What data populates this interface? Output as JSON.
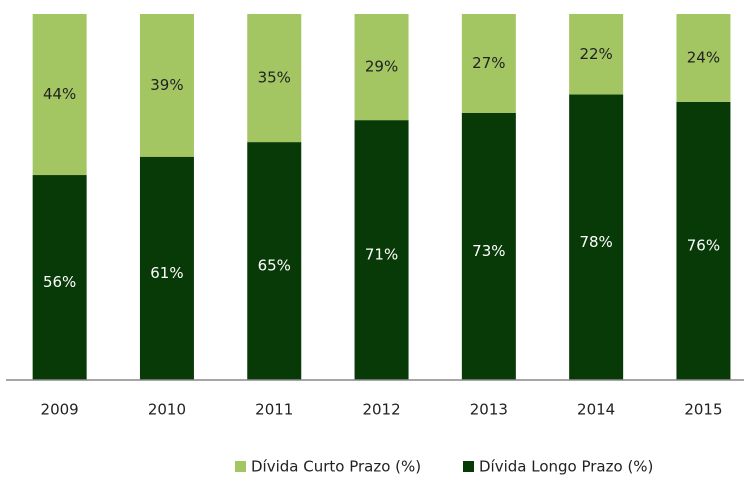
{
  "chart_data": {
    "type": "stacked_bar",
    "categories": [
      "2009",
      "2010",
      "2011",
      "2012",
      "2013",
      "2014",
      "2015"
    ],
    "series": [
      {
        "name": "Dívida Curto Prazo (%)",
        "color": "#a3c663",
        "values": [
          44,
          39,
          35,
          29,
          27,
          22,
          24
        ],
        "value_labels": [
          "44%",
          "39%",
          "35%",
          "29%",
          "27%",
          "22%",
          "24%"
        ]
      },
      {
        "name": "Dívida Longo Prazo (%)",
        "color": "#073a07",
        "values": [
          56,
          61,
          65,
          71,
          73,
          78,
          76
        ],
        "value_labels": [
          "56%",
          "61%",
          "65%",
          "71%",
          "73%",
          "78%",
          "76%"
        ]
      }
    ],
    "ylim": [
      0,
      100
    ]
  }
}
